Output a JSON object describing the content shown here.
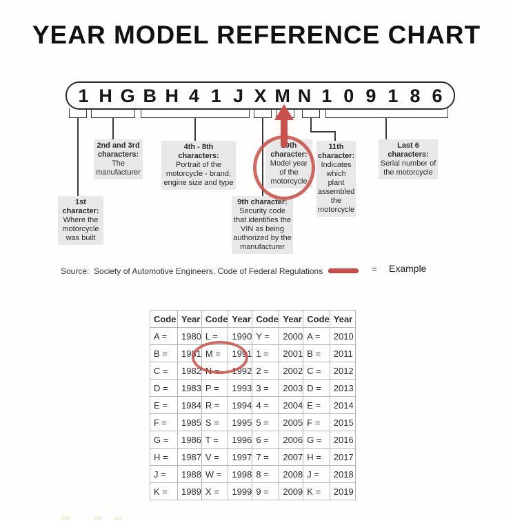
{
  "title": "YEAR MODEL REFERENCE CHART",
  "vin": {
    "characters": [
      "1",
      "H",
      "G",
      "B",
      "H",
      "4",
      "1",
      "J",
      "X",
      "M",
      "N",
      "1",
      "0",
      "9",
      "1",
      "8",
      "6"
    ]
  },
  "callouts": [
    {
      "heading": "1st character:",
      "body": "Where the motorcycle was built"
    },
    {
      "heading": "2nd and 3rd characters:",
      "body": "The manufacturer"
    },
    {
      "heading": "4th - 8th characters:",
      "body": "Portrait of the motorcycle - brand, engine size and type"
    },
    {
      "heading": "9th character:",
      "body": "Security code that identifies the VIN as being authorized by the manufacturer"
    },
    {
      "heading": "10th character:",
      "body": "Model year of the motorcycle"
    },
    {
      "heading": "11th character:",
      "body": "Indicates which plant assembled the motorcycle"
    },
    {
      "heading": "Last 6 characters:",
      "body": "Serial number of the motorcycle"
    }
  ],
  "source_text": "Source:  Society of Automotive Engineers, Code of Federal Regulations",
  "legend": {
    "equals": "=",
    "label": "Example"
  },
  "table": {
    "headers": [
      "Code",
      "Year",
      "Code",
      "Year",
      "Code",
      "Year",
      "Code",
      "Year"
    ],
    "rows": [
      [
        "A =",
        "1980",
        "L =",
        "1990",
        "Y =",
        "2000",
        "A =",
        "2010"
      ],
      [
        "B =",
        "1981",
        "M =",
        "1991",
        "1 =",
        "2001",
        "B =",
        "2011"
      ],
      [
        "C =",
        "1982",
        "N =",
        "1992",
        "2 =",
        "2002",
        "C =",
        "2012"
      ],
      [
        "D =",
        "1983",
        "P =",
        "1993",
        "3 =",
        "2003",
        "D =",
        "2013"
      ],
      [
        "E =",
        "1984",
        "R =",
        "1994",
        "4 =",
        "2004",
        "E =",
        "2014"
      ],
      [
        "F =",
        "1985",
        "S =",
        "1995",
        "5 =",
        "2005",
        "F =",
        "2015"
      ],
      [
        "G =",
        "1986",
        "T =",
        "1996",
        "6 =",
        "2006",
        "G =",
        "2016"
      ],
      [
        "H =",
        "1987",
        "V =",
        "1997",
        "7 =",
        "2007",
        "H =",
        "2017"
      ],
      [
        "J =",
        "1988",
        "W =",
        "1998",
        "8 =",
        "2008",
        "J =",
        "2018"
      ],
      [
        "K =",
        "1989",
        "X =",
        "1999",
        "9 =",
        "2009",
        "K =",
        "2019"
      ]
    ],
    "highlighted_cell": "M = 1991"
  },
  "colors": {
    "accent_red": "#c9504b",
    "callout_gray": "#e8e8e8",
    "line_dark": "#3b3b3b",
    "text": "#222222"
  }
}
